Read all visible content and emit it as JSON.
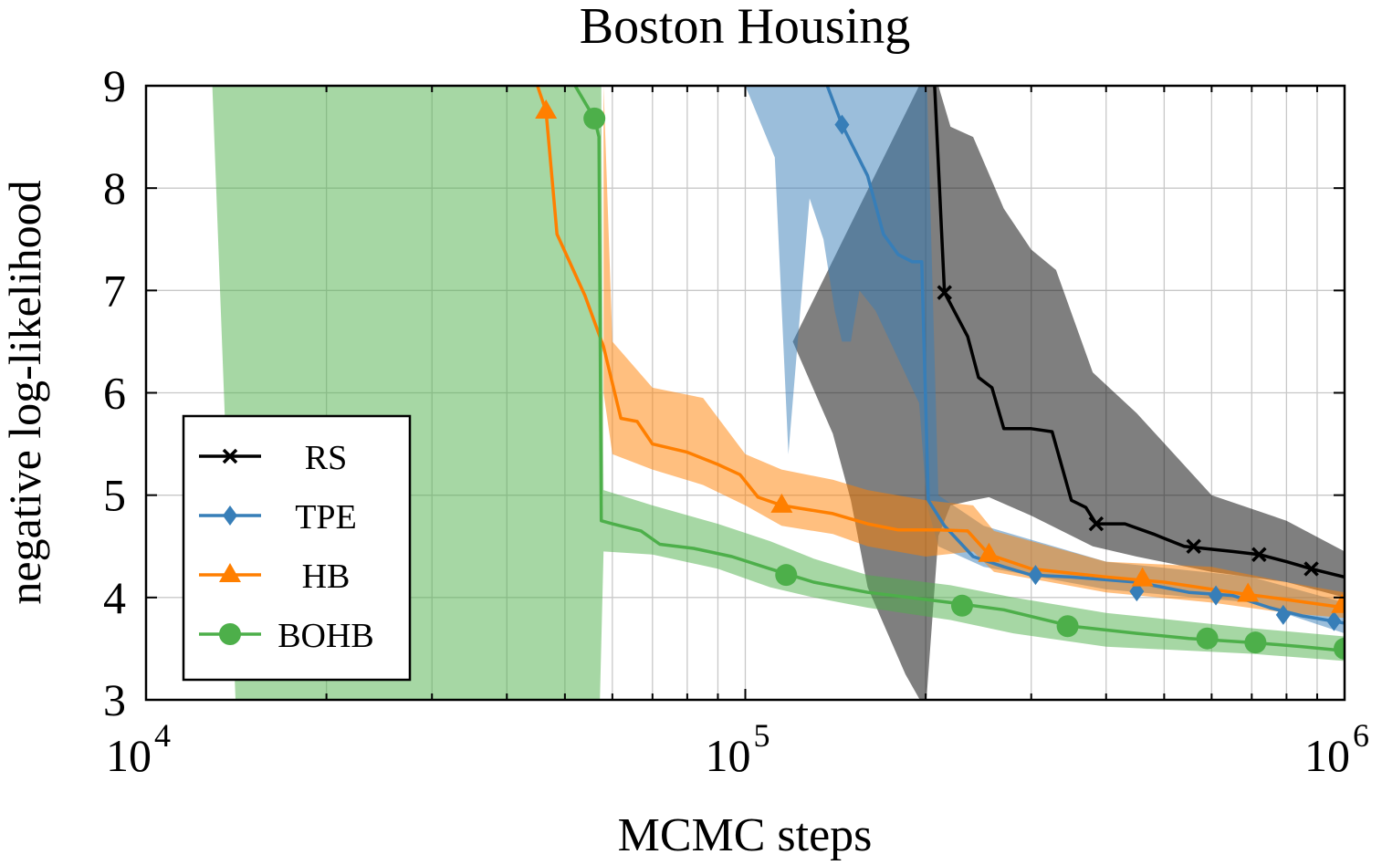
{
  "chart_data": {
    "type": "line",
    "title": "Boston Housing",
    "xlabel": "MCMC steps",
    "ylabel": "negative log-likelihood",
    "xscale": "log",
    "xlim": [
      10000,
      1000000
    ],
    "ylim": [
      3,
      9
    ],
    "xticks": [
      {
        "value": 10000,
        "base": "10",
        "exp": "4"
      },
      {
        "value": 100000,
        "base": "10",
        "exp": "5"
      },
      {
        "value": 1000000,
        "base": "10",
        "exp": "6"
      }
    ],
    "yticks": [
      "3",
      "4",
      "5",
      "6",
      "7",
      "8",
      "9"
    ],
    "grid": true,
    "legend_position": "lower-left",
    "series": [
      {
        "name": "RS",
        "color": "#000000",
        "marker": "x",
        "mean": [
          [
            207000,
            9.0
          ],
          [
            215000,
            6.98
          ],
          [
            235000,
            6.55
          ],
          [
            245000,
            6.15
          ],
          [
            258000,
            6.05
          ],
          [
            270000,
            5.65
          ],
          [
            300000,
            5.65
          ],
          [
            325000,
            5.62
          ],
          [
            350000,
            4.95
          ],
          [
            370000,
            4.88
          ],
          [
            385000,
            4.72
          ],
          [
            430000,
            4.72
          ],
          [
            480000,
            4.62
          ],
          [
            540000,
            4.5
          ],
          [
            650000,
            4.45
          ],
          [
            720000,
            4.42
          ],
          [
            800000,
            4.35
          ],
          [
            880000,
            4.28
          ],
          [
            1000000,
            4.2
          ]
        ],
        "markers": [
          [
            215000,
            6.98
          ],
          [
            385000,
            4.72
          ],
          [
            560000,
            4.5
          ],
          [
            720000,
            4.42
          ],
          [
            880000,
            4.28
          ]
        ],
        "band_upper": [
          [
            195000,
            9.0
          ],
          [
            200000,
            9.0
          ],
          [
            210000,
            9.0
          ],
          [
            220000,
            8.6
          ],
          [
            240000,
            8.5
          ],
          [
            270000,
            7.8
          ],
          [
            300000,
            7.4
          ],
          [
            330000,
            7.2
          ],
          [
            380000,
            6.2
          ],
          [
            450000,
            5.8
          ],
          [
            600000,
            5.0
          ],
          [
            800000,
            4.75
          ],
          [
            1000000,
            4.45
          ]
        ],
        "band_lower": [
          [
            1000000,
            4.0
          ],
          [
            800000,
            4.15
          ],
          [
            600000,
            4.25
          ],
          [
            450000,
            4.4
          ],
          [
            380000,
            4.5
          ],
          [
            300000,
            4.8
          ],
          [
            255000,
            4.98
          ],
          [
            240000,
            4.95
          ],
          [
            220000,
            4.9
          ],
          [
            210000,
            4.6
          ],
          [
            200000,
            2.9
          ],
          [
            185000,
            3.25
          ],
          [
            160000,
            4.1
          ],
          [
            150000,
            4.95
          ],
          [
            140000,
            5.6
          ],
          [
            120000,
            6.5
          ]
        ]
      },
      {
        "name": "TPE",
        "color": "#377eb8",
        "marker": "diamond",
        "mean": [
          [
            137000,
            9.0
          ],
          [
            145000,
            8.62
          ],
          [
            160000,
            8.12
          ],
          [
            170000,
            7.55
          ],
          [
            180000,
            7.35
          ],
          [
            190000,
            7.28
          ],
          [
            197000,
            7.28
          ],
          [
            202000,
            4.95
          ],
          [
            215000,
            4.7
          ],
          [
            240000,
            4.4
          ],
          [
            270000,
            4.3
          ],
          [
            300000,
            4.22
          ],
          [
            350000,
            4.2
          ],
          [
            450000,
            4.15
          ],
          [
            550000,
            4.05
          ],
          [
            650000,
            4.02
          ],
          [
            750000,
            3.9
          ],
          [
            850000,
            3.82
          ],
          [
            1000000,
            3.75
          ]
        ],
        "markers": [
          [
            145000,
            8.62
          ],
          [
            305000,
            4.22
          ],
          [
            450000,
            4.06
          ],
          [
            610000,
            4.02
          ],
          [
            790000,
            3.83
          ],
          [
            960000,
            3.77
          ]
        ],
        "band_upper": [
          [
            97000,
            9.0
          ],
          [
            200000,
            9.0
          ],
          [
            201000,
            9.0
          ],
          [
            210000,
            5.0
          ],
          [
            250000,
            4.7
          ],
          [
            400000,
            4.35
          ],
          [
            700000,
            4.2
          ],
          [
            1000000,
            3.95
          ]
        ],
        "band_lower": [
          [
            1000000,
            3.65
          ],
          [
            700000,
            3.95
          ],
          [
            400000,
            4.08
          ],
          [
            250000,
            4.3
          ],
          [
            210000,
            4.5
          ],
          [
            201000,
            4.9
          ],
          [
            195000,
            5.9
          ],
          [
            165000,
            6.8
          ],
          [
            155000,
            7.0
          ],
          [
            150000,
            6.5
          ],
          [
            145000,
            6.5
          ],
          [
            141000,
            6.8
          ],
          [
            135000,
            7.5
          ],
          [
            128000,
            7.9
          ],
          [
            118000,
            5.4
          ],
          [
            112000,
            8.3
          ],
          [
            100000,
            9.0
          ]
        ]
      },
      {
        "name": "HB",
        "color": "#ff7f00",
        "marker": "triangle",
        "mean": [
          [
            45000,
            9.0
          ],
          [
            46500,
            8.75
          ],
          [
            48500,
            7.55
          ],
          [
            54000,
            6.95
          ],
          [
            58000,
            6.45
          ],
          [
            62000,
            5.75
          ],
          [
            66000,
            5.72
          ],
          [
            70000,
            5.5
          ],
          [
            80000,
            5.42
          ],
          [
            90000,
            5.3
          ],
          [
            98000,
            5.2
          ],
          [
            105000,
            4.98
          ],
          [
            115000,
            4.9
          ],
          [
            140000,
            4.82
          ],
          [
            160000,
            4.72
          ],
          [
            180000,
            4.66
          ],
          [
            210000,
            4.66
          ],
          [
            235000,
            4.65
          ],
          [
            255000,
            4.42
          ],
          [
            300000,
            4.28
          ],
          [
            400000,
            4.2
          ],
          [
            500000,
            4.15
          ],
          [
            650000,
            4.05
          ],
          [
            800000,
            3.98
          ],
          [
            1000000,
            3.9
          ]
        ],
        "markers": [
          [
            46500,
            8.75
          ],
          [
            115000,
            4.9
          ],
          [
            255000,
            4.42
          ],
          [
            460000,
            4.18
          ],
          [
            690000,
            4.03
          ],
          [
            990000,
            3.92
          ]
        ],
        "band_upper": [
          [
            58000,
            9.0
          ],
          [
            60000,
            6.5
          ],
          [
            70000,
            6.05
          ],
          [
            85000,
            5.95
          ],
          [
            100000,
            5.4
          ],
          [
            115000,
            5.25
          ],
          [
            140000,
            5.15
          ],
          [
            160000,
            5.05
          ],
          [
            200000,
            4.95
          ],
          [
            240000,
            4.9
          ],
          [
            260000,
            4.65
          ],
          [
            400000,
            4.35
          ],
          [
            600000,
            4.3
          ],
          [
            800000,
            4.15
          ],
          [
            1000000,
            4.05
          ]
        ],
        "band_lower": [
          [
            1000000,
            3.8
          ],
          [
            800000,
            3.85
          ],
          [
            600000,
            3.95
          ],
          [
            400000,
            4.05
          ],
          [
            260000,
            4.25
          ],
          [
            240000,
            4.45
          ],
          [
            200000,
            4.4
          ],
          [
            160000,
            4.5
          ],
          [
            140000,
            4.62
          ],
          [
            115000,
            4.7
          ],
          [
            100000,
            4.9
          ],
          [
            85000,
            5.1
          ],
          [
            70000,
            5.25
          ],
          [
            60000,
            5.4
          ],
          [
            58000,
            6.0
          ]
        ]
      },
      {
        "name": "BOHB",
        "color": "#4daf4a",
        "marker": "circle",
        "mean": [
          [
            52000,
            9.0
          ],
          [
            56000,
            8.68
          ],
          [
            57000,
            8.5
          ],
          [
            57500,
            4.75
          ],
          [
            60000,
            4.72
          ],
          [
            67000,
            4.65
          ],
          [
            72000,
            4.52
          ],
          [
            82000,
            4.48
          ],
          [
            95000,
            4.4
          ],
          [
            110000,
            4.28
          ],
          [
            130000,
            4.15
          ],
          [
            160000,
            4.05
          ],
          [
            220000,
            3.95
          ],
          [
            270000,
            3.88
          ],
          [
            350000,
            3.72
          ],
          [
            450000,
            3.65
          ],
          [
            550000,
            3.6
          ],
          [
            700000,
            3.56
          ],
          [
            850000,
            3.52
          ],
          [
            1000000,
            3.48
          ]
        ],
        "markers": [
          [
            56000,
            8.68
          ],
          [
            117000,
            4.22
          ],
          [
            230000,
            3.92
          ],
          [
            345000,
            3.72
          ],
          [
            590000,
            3.6
          ],
          [
            710000,
            3.56
          ],
          [
            1000000,
            3.5
          ]
        ],
        "band_upper": [
          [
            12900,
            9.0
          ],
          [
            57500,
            9.0
          ],
          [
            58000,
            5.05
          ],
          [
            70000,
            4.9
          ],
          [
            90000,
            4.72
          ],
          [
            110000,
            4.55
          ],
          [
            130000,
            4.38
          ],
          [
            160000,
            4.22
          ],
          [
            220000,
            4.12
          ],
          [
            280000,
            4.0
          ],
          [
            400000,
            3.85
          ],
          [
            700000,
            3.7
          ],
          [
            1000000,
            3.62
          ]
        ],
        "band_lower": [
          [
            1000000,
            3.38
          ],
          [
            700000,
            3.45
          ],
          [
            400000,
            3.52
          ],
          [
            280000,
            3.65
          ],
          [
            220000,
            3.78
          ],
          [
            160000,
            3.9
          ],
          [
            130000,
            4.0
          ],
          [
            110000,
            4.1
          ],
          [
            90000,
            4.28
          ],
          [
            70000,
            4.42
          ],
          [
            58000,
            4.45
          ],
          [
            57200,
            3.0
          ],
          [
            14100,
            3.0
          ]
        ]
      }
    ]
  }
}
